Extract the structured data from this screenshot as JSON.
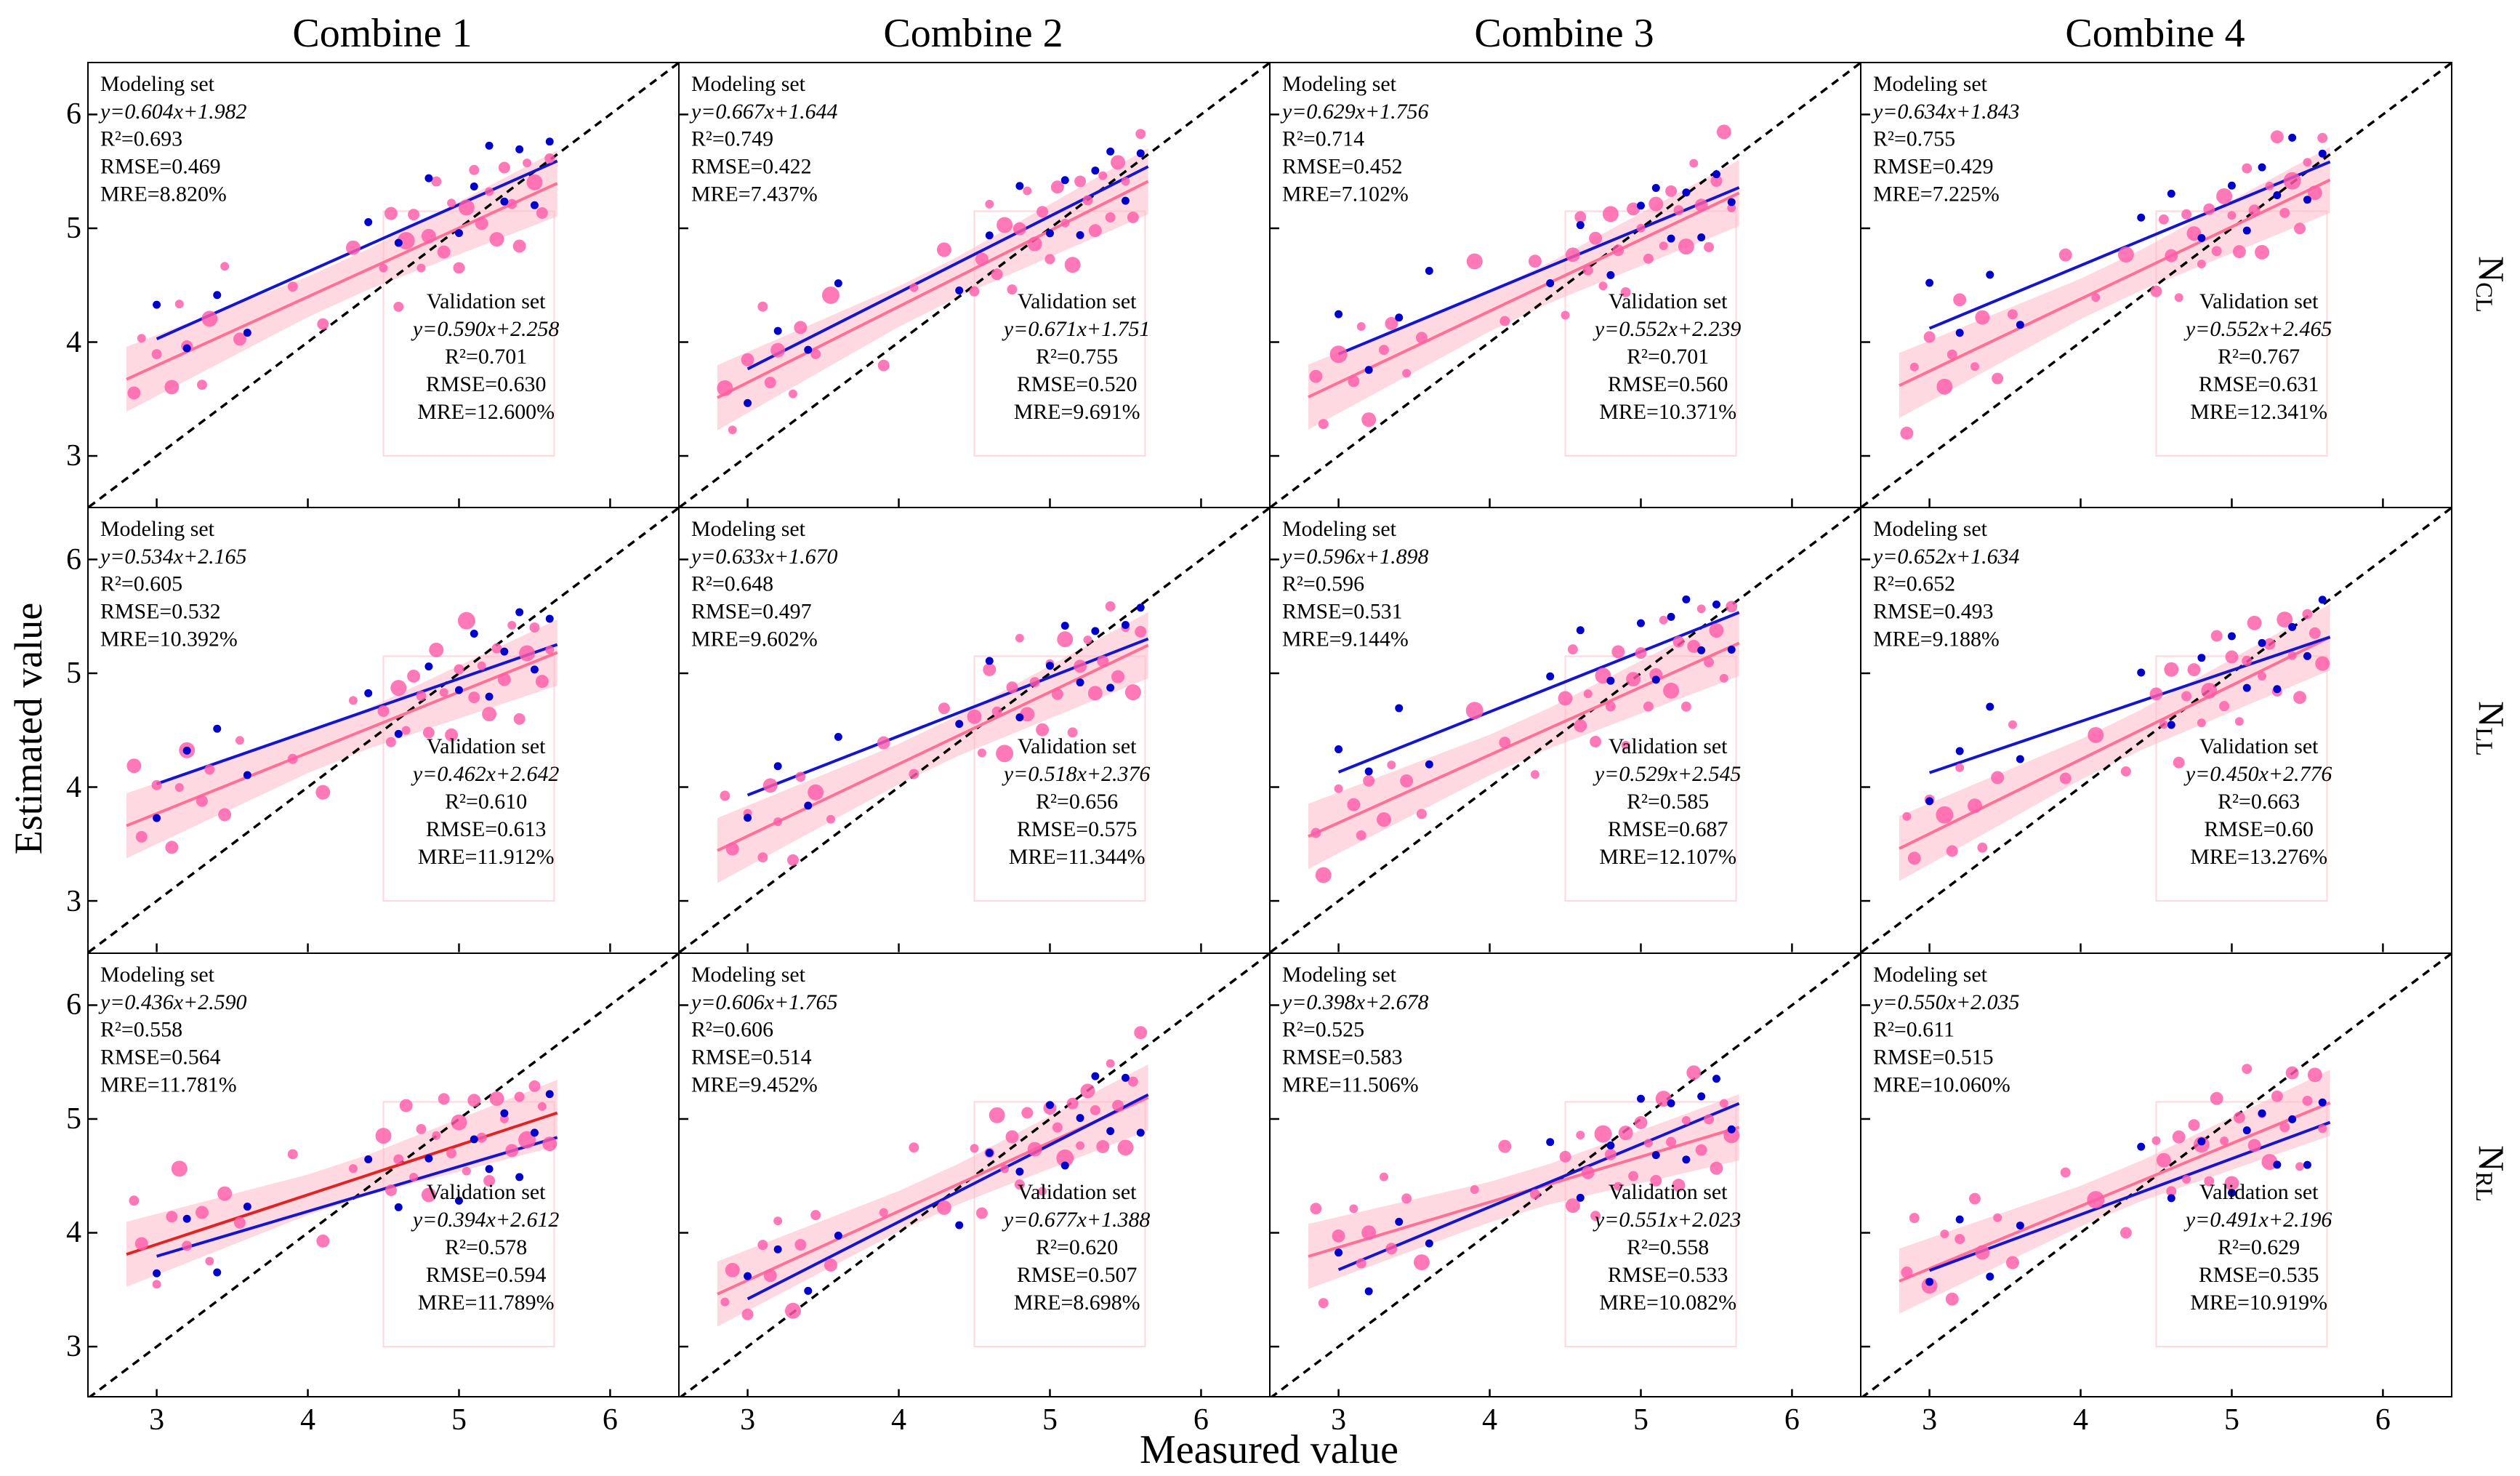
{
  "title_columns": [
    "Combine 1",
    "Combine 2",
    "Combine 3",
    "Combine 4"
  ],
  "row_labels": [
    {
      "base": "N",
      "sub": "CL"
    },
    {
      "base": "N",
      "sub": "LL"
    },
    {
      "base": "N",
      "sub": "RL"
    }
  ],
  "axes": {
    "x_label": "Measured value",
    "y_label": "Estimated value",
    "ticks": [
      3,
      4,
      5,
      6
    ],
    "range": [
      2.55,
      6.45
    ]
  },
  "labels": {
    "modeling_set": "Modeling set",
    "validation_set": "Validation set",
    "r2_prefix": "R²=",
    "rmse_prefix": "RMSE=",
    "mre_prefix": "MRE="
  },
  "colors": {
    "fit_line": "#ff7096",
    "fit_band": "#ffb3c4",
    "validation_line": "#1515cf",
    "pink_point": "#ff5ca8",
    "blue_point": "#0000cc",
    "identity_line": "#000000",
    "artifact_rect": "#ffb6c1"
  },
  "chart_data": {
    "type": "scatter",
    "xlabel": "Measured value",
    "ylabel": "Estimated value",
    "xlim": [
      2.55,
      6.45
    ],
    "ylim": [
      2.55,
      6.45
    ],
    "grid": false,
    "identity_line": "dashed 1:1",
    "panels": [
      {
        "row": 0,
        "col": 0,
        "modeling": {
          "eq": "y=0.604x+1.982",
          "a": 0.604,
          "b": 1.982,
          "r2": "0.693",
          "rmse": "0.469",
          "mre": "8.820%"
        },
        "validation": {
          "eq": "y=0.590x+2.258",
          "a": 0.59,
          "b": 2.258,
          "r2": "0.701",
          "rmse": "0.630",
          "mre": "12.600%"
        }
      },
      {
        "row": 0,
        "col": 1,
        "modeling": {
          "eq": "y=0.667x+1.644",
          "a": 0.667,
          "b": 1.644,
          "r2": "0.749",
          "rmse": "0.422",
          "mre": "7.437%"
        },
        "validation": {
          "eq": "y=0.671x+1.751",
          "a": 0.671,
          "b": 1.751,
          "r2": "0.755",
          "rmse": "0.520",
          "mre": "9.691%"
        }
      },
      {
        "row": 0,
        "col": 2,
        "modeling": {
          "eq": "y=0.629x+1.756",
          "a": 0.629,
          "b": 1.756,
          "r2": "0.714",
          "rmse": "0.452",
          "mre": "7.102%"
        },
        "validation": {
          "eq": "y=0.552x+2.239",
          "a": 0.552,
          "b": 2.239,
          "r2": "0.701",
          "rmse": "0.560",
          "mre": "10.371%"
        }
      },
      {
        "row": 0,
        "col": 3,
        "modeling": {
          "eq": "y=0.634x+1.843",
          "a": 0.634,
          "b": 1.843,
          "r2": "0.755",
          "rmse": "0.429",
          "mre": "7.225%"
        },
        "validation": {
          "eq": "y=0.552x+2.465",
          "a": 0.552,
          "b": 2.465,
          "r2": "0.767",
          "rmse": "0.631",
          "mre": "12.341%"
        }
      },
      {
        "row": 1,
        "col": 0,
        "modeling": {
          "eq": "y=0.534x+2.165",
          "a": 0.534,
          "b": 2.165,
          "r2": "0.605",
          "rmse": "0.532",
          "mre": "10.392%"
        },
        "validation": {
          "eq": "y=0.462x+2.642",
          "a": 0.462,
          "b": 2.642,
          "r2": "0.610",
          "rmse": "0.613",
          "mre": "11.912%"
        }
      },
      {
        "row": 1,
        "col": 1,
        "modeling": {
          "eq": "y=0.633x+1.670",
          "a": 0.633,
          "b": 1.67,
          "r2": "0.648",
          "rmse": "0.497",
          "mre": "9.602%"
        },
        "validation": {
          "eq": "y=0.518x+2.376",
          "a": 0.518,
          "b": 2.376,
          "r2": "0.656",
          "rmse": "0.575",
          "mre": "11.344%"
        }
      },
      {
        "row": 1,
        "col": 2,
        "modeling": {
          "eq": "y=0.596x+1.898",
          "a": 0.596,
          "b": 1.898,
          "r2": "0.596",
          "rmse": "0.531",
          "mre": "9.144%"
        },
        "validation": {
          "eq": "y=0.529x+2.545",
          "a": 0.529,
          "b": 2.545,
          "r2": "0.585",
          "rmse": "0.687",
          "mre": "12.107%"
        }
      },
      {
        "row": 1,
        "col": 3,
        "modeling": {
          "eq": "y=0.652x+1.634",
          "a": 0.652,
          "b": 1.634,
          "r2": "0.652",
          "rmse": "0.493",
          "mre": "9.188%"
        },
        "validation": {
          "eq": "y=0.450x+2.776",
          "a": 0.45,
          "b": 2.776,
          "r2": "0.663",
          "rmse": "0.60",
          "mre": "13.276%"
        }
      },
      {
        "row": 2,
        "col": 0,
        "fit_color": "#e02424",
        "modeling": {
          "eq": "y=0.436x+2.590",
          "a": 0.436,
          "b": 2.59,
          "r2": "0.558",
          "rmse": "0.564",
          "mre": "11.781%"
        },
        "validation": {
          "eq": "y=0.394x+2.612",
          "a": 0.394,
          "b": 2.612,
          "r2": "0.578",
          "rmse": "0.594",
          "mre": "11.789%"
        }
      },
      {
        "row": 2,
        "col": 1,
        "modeling": {
          "eq": "y=0.606x+1.765",
          "a": 0.606,
          "b": 1.765,
          "r2": "0.606",
          "rmse": "0.514",
          "mre": "9.452%"
        },
        "validation": {
          "eq": "y=0.677x+1.388",
          "a": 0.677,
          "b": 1.388,
          "r2": "0.620",
          "rmse": "0.507",
          "mre": "8.698%"
        }
      },
      {
        "row": 2,
        "col": 2,
        "modeling": {
          "eq": "y=0.398x+2.678",
          "a": 0.398,
          "b": 2.678,
          "r2": "0.525",
          "rmse": "0.583",
          "mre": "11.506%"
        },
        "validation": {
          "eq": "y=0.551x+2.023",
          "a": 0.551,
          "b": 2.023,
          "r2": "0.558",
          "rmse": "0.533",
          "mre": "10.082%"
        }
      },
      {
        "row": 2,
        "col": 3,
        "modeling": {
          "eq": "y=0.550x+2.035",
          "a": 0.55,
          "b": 2.035,
          "r2": "0.611",
          "rmse": "0.515",
          "mre": "10.060%"
        },
        "validation": {
          "eq": "y=0.491x+2.196",
          "a": 0.491,
          "b": 2.196,
          "r2": "0.629",
          "rmse": "0.535",
          "mre": "10.919%"
        }
      }
    ],
    "scatter_template": {
      "pink_x": [
        2.85,
        2.9,
        3.0,
        3.1,
        3.15,
        3.2,
        3.3,
        3.35,
        3.45,
        3.55,
        3.9,
        4.1,
        4.3,
        4.5,
        4.55,
        4.6,
        4.65,
        4.7,
        4.75,
        4.8,
        4.85,
        4.9,
        4.95,
        5.0,
        5.05,
        5.1,
        5.15,
        5.2,
        5.25,
        5.3,
        5.35,
        5.4,
        5.45,
        5.5,
        5.55,
        5.6
      ],
      "pink_dy": [
        -0.15,
        0.3,
        0.1,
        -0.25,
        0.45,
        0.05,
        -0.35,
        0.2,
        0.6,
        -0.1,
        0.15,
        -0.3,
        0.25,
        -0.05,
        0.4,
        -0.45,
        0.1,
        0.3,
        -0.2,
        0.05,
        0.5,
        -0.15,
        0.25,
        -0.35,
        0.15,
        0.45,
        -0.05,
        0.2,
        -0.25,
        0.35,
        0.0,
        -0.4,
        0.3,
        0.1,
        -0.2,
        0.25
      ],
      "pink_r": [
        9,
        6,
        7,
        10,
        6,
        8,
        7,
        11,
        6,
        9,
        7,
        8,
        10,
        6,
        9,
        7,
        12,
        8,
        6,
        10,
        7,
        9,
        6,
        8,
        11,
        7,
        9,
        6,
        10,
        8,
        7,
        9,
        6,
        11,
        8,
        7
      ],
      "blue_x": [
        3.0,
        3.2,
        3.4,
        3.6,
        4.4,
        4.6,
        4.8,
        5.0,
        5.1,
        5.2,
        5.3,
        5.4,
        5.5,
        5.6
      ],
      "blue_dy": [
        0.3,
        -0.2,
        0.15,
        -0.3,
        0.2,
        -0.1,
        0.35,
        -0.25,
        0.1,
        0.4,
        -0.15,
        0.25,
        -0.3,
        0.2
      ],
      "blue_r": 5.5
    }
  }
}
